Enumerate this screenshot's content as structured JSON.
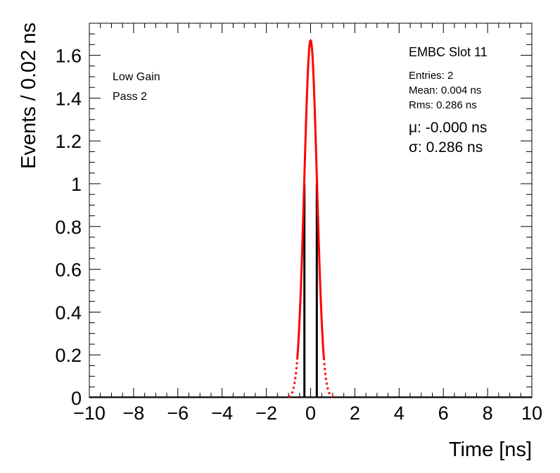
{
  "chart_data": {
    "type": "histogram",
    "xlabel": "Time [ns]",
    "ylabel": "Events / 0.02 ns",
    "xlim": [
      -10,
      10
    ],
    "ylim": [
      0,
      1.75
    ],
    "x_ticks": [
      -10,
      -8,
      -6,
      -4,
      -2,
      0,
      2,
      4,
      6,
      8,
      10
    ],
    "x_tick_labels": [
      "−10",
      "−8",
      "−6",
      "−4",
      "−2",
      "0",
      "2",
      "4",
      "6",
      "8",
      "10"
    ],
    "y_ticks": [
      0,
      0.2,
      0.4,
      0.6,
      0.8,
      1,
      1.2,
      1.4,
      1.6
    ],
    "y_tick_labels": [
      "0",
      "0.2",
      "0.4",
      "0.6",
      "0.8",
      "1",
      "1.2",
      "1.4",
      "1.6"
    ],
    "histogram": {
      "bins": [
        {
          "x": -0.28,
          "value": 1
        },
        {
          "x": 0.28,
          "value": 1
        }
      ],
      "color": "#000000"
    },
    "fit": {
      "function": "gaussian",
      "amplitude": 1.67,
      "mean": 0.0,
      "sigma": 0.286,
      "solid_range": [
        -0.6,
        0.6
      ],
      "dashed_range": [
        -1.0,
        1.0
      ],
      "color": "#ff0000"
    },
    "left_labels": [
      "Low Gain",
      "Pass 2"
    ],
    "stats": {
      "title": "EMBC Slot 11",
      "entries": "Entries: 2",
      "mean": "Mean: 0.004 ns",
      "rms": "Rms: 0.286 ns",
      "mu": "μ: -0.000 ns",
      "sigma": "σ: 0.286 ns"
    }
  }
}
